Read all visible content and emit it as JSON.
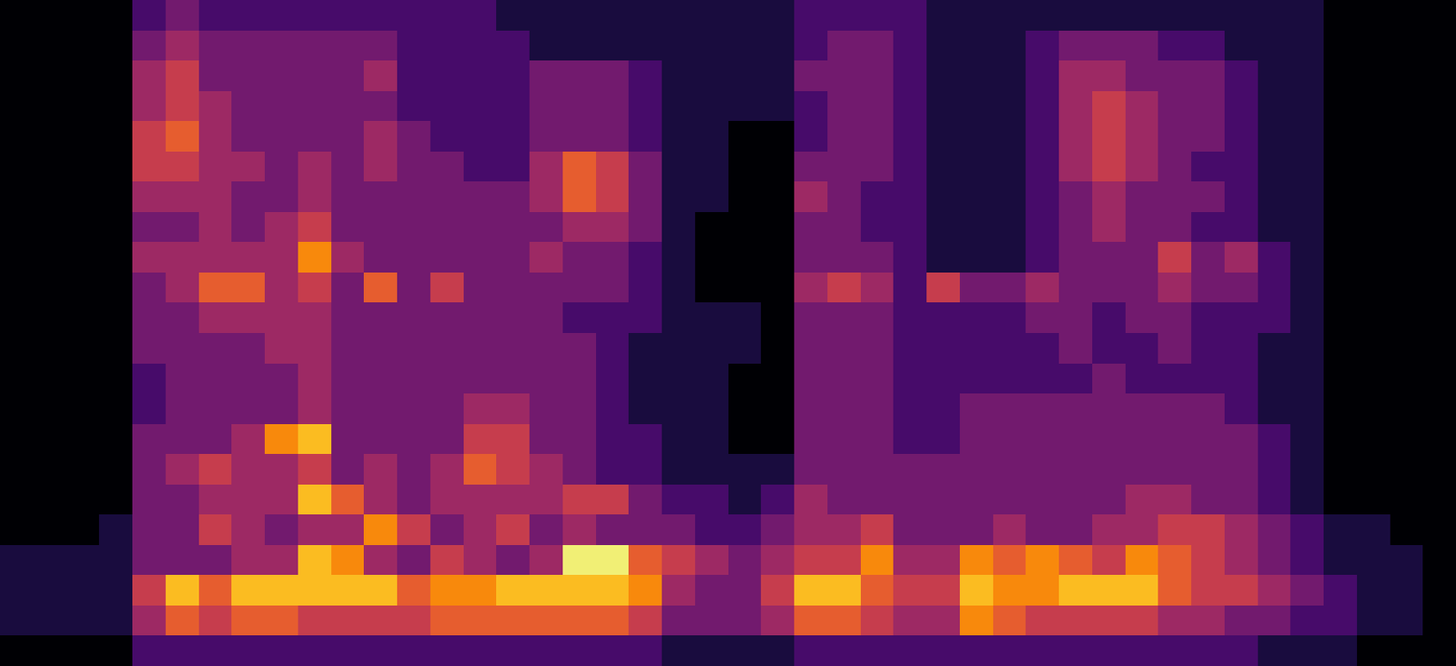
{
  "chart_data": {
    "type": "heatmap",
    "color": "inferno",
    "tick_labels": false,
    "zlim": [
      0,
      9
    ],
    "cells": [
      [
        0,
        0,
        0,
        0,
        2,
        3,
        2,
        2,
        2,
        2,
        2,
        2,
        2,
        2,
        2,
        1,
        1,
        1,
        1,
        1,
        1,
        1,
        1,
        1,
        2,
        2,
        2,
        2,
        1,
        1,
        1,
        1,
        1,
        1,
        1,
        1,
        1,
        1,
        1,
        1,
        0,
        0,
        0,
        0
      ],
      [
        0,
        0,
        0,
        0,
        3,
        4,
        3,
        3,
        3,
        3,
        3,
        3,
        2,
        2,
        2,
        2,
        1,
        1,
        1,
        1,
        1,
        1,
        1,
        1,
        2,
        3,
        3,
        2,
        1,
        1,
        1,
        2,
        3,
        3,
        3,
        2,
        2,
        1,
        1,
        1,
        0,
        0,
        0,
        0
      ],
      [
        0,
        0,
        0,
        0,
        4,
        5,
        3,
        3,
        3,
        3,
        3,
        4,
        2,
        2,
        2,
        2,
        3,
        3,
        3,
        2,
        1,
        1,
        1,
        1,
        3,
        3,
        3,
        2,
        1,
        1,
        1,
        2,
        4,
        4,
        3,
        3,
        3,
        2,
        1,
        1,
        0,
        0,
        0,
        0
      ],
      [
        0,
        0,
        0,
        0,
        4,
        5,
        4,
        3,
        3,
        3,
        3,
        3,
        2,
        2,
        2,
        2,
        3,
        3,
        3,
        2,
        1,
        1,
        1,
        1,
        2,
        3,
        3,
        2,
        1,
        1,
        1,
        2,
        4,
        5,
        4,
        3,
        3,
        2,
        1,
        1,
        0,
        0,
        0,
        0
      ],
      [
        0,
        0,
        0,
        0,
        5,
        6,
        4,
        3,
        3,
        3,
        3,
        4,
        3,
        2,
        2,
        2,
        3,
        3,
        3,
        2,
        1,
        1,
        0,
        0,
        2,
        3,
        3,
        2,
        1,
        1,
        1,
        2,
        4,
        5,
        4,
        3,
        3,
        2,
        1,
        1,
        0,
        0,
        0,
        0
      ],
      [
        0,
        0,
        0,
        0,
        5,
        5,
        4,
        4,
        3,
        4,
        3,
        4,
        3,
        3,
        2,
        2,
        4,
        6,
        5,
        3,
        1,
        1,
        0,
        0,
        3,
        3,
        3,
        2,
        1,
        1,
        1,
        2,
        4,
        5,
        4,
        3,
        2,
        2,
        1,
        1,
        0,
        0,
        0,
        0
      ],
      [
        0,
        0,
        0,
        0,
        4,
        4,
        4,
        3,
        3,
        4,
        3,
        3,
        3,
        3,
        3,
        3,
        4,
        6,
        5,
        3,
        1,
        1,
        0,
        0,
        4,
        3,
        2,
        2,
        1,
        1,
        1,
        2,
        3,
        4,
        3,
        3,
        3,
        2,
        1,
        1,
        0,
        0,
        0,
        0
      ],
      [
        0,
        0,
        0,
        0,
        3,
        3,
        4,
        3,
        4,
        5,
        3,
        3,
        3,
        3,
        3,
        3,
        3,
        4,
        4,
        3,
        1,
        0,
        0,
        0,
        3,
        3,
        2,
        2,
        1,
        1,
        1,
        2,
        3,
        4,
        3,
        3,
        2,
        2,
        1,
        1,
        0,
        0,
        0,
        0
      ],
      [
        0,
        0,
        0,
        0,
        4,
        4,
        4,
        4,
        4,
        7,
        4,
        3,
        3,
        3,
        3,
        3,
        4,
        3,
        3,
        2,
        1,
        0,
        0,
        0,
        3,
        3,
        3,
        2,
        1,
        1,
        1,
        2,
        3,
        3,
        3,
        5,
        3,
        4,
        2,
        1,
        0,
        0,
        0,
        0
      ],
      [
        0,
        0,
        0,
        0,
        3,
        4,
        6,
        6,
        4,
        5,
        3,
        6,
        3,
        5,
        3,
        3,
        3,
        3,
        3,
        2,
        1,
        0,
        0,
        0,
        4,
        5,
        4,
        2,
        5,
        3,
        3,
        4,
        3,
        3,
        3,
        4,
        3,
        3,
        2,
        1,
        0,
        0,
        0,
        0
      ],
      [
        0,
        0,
        0,
        0,
        3,
        3,
        4,
        4,
        4,
        4,
        3,
        3,
        3,
        3,
        3,
        3,
        3,
        2,
        2,
        2,
        1,
        1,
        1,
        0,
        3,
        3,
        3,
        2,
        2,
        2,
        2,
        3,
        3,
        2,
        3,
        3,
        2,
        2,
        2,
        1,
        0,
        0,
        0,
        0
      ],
      [
        0,
        0,
        0,
        0,
        3,
        3,
        3,
        3,
        4,
        4,
        3,
        3,
        3,
        3,
        3,
        3,
        3,
        3,
        2,
        1,
        1,
        1,
        1,
        0,
        3,
        3,
        3,
        2,
        2,
        2,
        2,
        2,
        3,
        2,
        2,
        3,
        2,
        2,
        1,
        1,
        0,
        0,
        0,
        0
      ],
      [
        0,
        0,
        0,
        0,
        2,
        3,
        3,
        3,
        3,
        4,
        3,
        3,
        3,
        3,
        3,
        3,
        3,
        3,
        2,
        1,
        1,
        1,
        0,
        0,
        3,
        3,
        3,
        2,
        2,
        2,
        2,
        2,
        2,
        3,
        2,
        2,
        2,
        2,
        1,
        1,
        0,
        0,
        0,
        0
      ],
      [
        0,
        0,
        0,
        0,
        2,
        3,
        3,
        3,
        3,
        4,
        3,
        3,
        3,
        3,
        4,
        4,
        3,
        3,
        2,
        1,
        1,
        1,
        0,
        0,
        3,
        3,
        3,
        2,
        2,
        3,
        3,
        3,
        3,
        3,
        3,
        3,
        3,
        2,
        1,
        1,
        0,
        0,
        0,
        0
      ],
      [
        0,
        0,
        0,
        0,
        3,
        3,
        3,
        4,
        7,
        8,
        3,
        3,
        3,
        3,
        5,
        5,
        3,
        3,
        2,
        2,
        1,
        1,
        0,
        0,
        3,
        3,
        3,
        2,
        2,
        3,
        3,
        3,
        3,
        3,
        3,
        3,
        3,
        3,
        2,
        1,
        0,
        0,
        0,
        0
      ],
      [
        0,
        0,
        0,
        0,
        3,
        4,
        5,
        4,
        4,
        5,
        3,
        4,
        3,
        4,
        6,
        5,
        4,
        3,
        2,
        2,
        1,
        1,
        1,
        1,
        3,
        3,
        3,
        3,
        3,
        3,
        3,
        3,
        3,
        3,
        3,
        3,
        3,
        3,
        2,
        1,
        0,
        0,
        0,
        0
      ],
      [
        0,
        0,
        0,
        0,
        3,
        3,
        4,
        4,
        4,
        8,
        6,
        4,
        3,
        4,
        4,
        4,
        4,
        5,
        5,
        3,
        2,
        2,
        1,
        2,
        4,
        3,
        3,
        3,
        3,
        3,
        3,
        3,
        3,
        3,
        4,
        4,
        3,
        3,
        2,
        1,
        0,
        0,
        0,
        0
      ],
      [
        0,
        0,
        0,
        1,
        3,
        3,
        5,
        4,
        3,
        4,
        4,
        7,
        5,
        3,
        4,
        5,
        3,
        4,
        3,
        3,
        3,
        2,
        2,
        3,
        4,
        4,
        5,
        3,
        3,
        3,
        4,
        3,
        3,
        4,
        4,
        5,
        5,
        4,
        3,
        2,
        1,
        1,
        0,
        0
      ],
      [
        1,
        1,
        1,
        1,
        3,
        3,
        3,
        4,
        4,
        8,
        7,
        4,
        3,
        5,
        4,
        3,
        4,
        9,
        9,
        6,
        5,
        4,
        3,
        4,
        5,
        5,
        7,
        4,
        4,
        7,
        6,
        7,
        6,
        5,
        7,
        6,
        5,
        4,
        3,
        2,
        1,
        1,
        1,
        0
      ],
      [
        1,
        1,
        1,
        1,
        5,
        8,
        6,
        8,
        8,
        8,
        8,
        8,
        6,
        7,
        7,
        8,
        8,
        8,
        8,
        7,
        4,
        3,
        3,
        5,
        8,
        8,
        6,
        5,
        5,
        8,
        7,
        7,
        8,
        8,
        8,
        6,
        5,
        5,
        4,
        3,
        2,
        1,
        1,
        0
      ],
      [
        1,
        1,
        1,
        1,
        4,
        6,
        5,
        6,
        6,
        5,
        5,
        5,
        5,
        6,
        6,
        6,
        6,
        6,
        6,
        5,
        3,
        3,
        3,
        4,
        6,
        6,
        5,
        4,
        4,
        7,
        6,
        5,
        5,
        5,
        5,
        4,
        4,
        3,
        3,
        2,
        2,
        1,
        1,
        0
      ],
      [
        0,
        0,
        0,
        0,
        2,
        2,
        2,
        2,
        2,
        2,
        2,
        2,
        2,
        2,
        2,
        2,
        2,
        2,
        2,
        2,
        1,
        1,
        1,
        1,
        2,
        2,
        2,
        2,
        2,
        2,
        2,
        2,
        2,
        2,
        2,
        2,
        2,
        2,
        1,
        1,
        1,
        0,
        0,
        0
      ]
    ]
  }
}
